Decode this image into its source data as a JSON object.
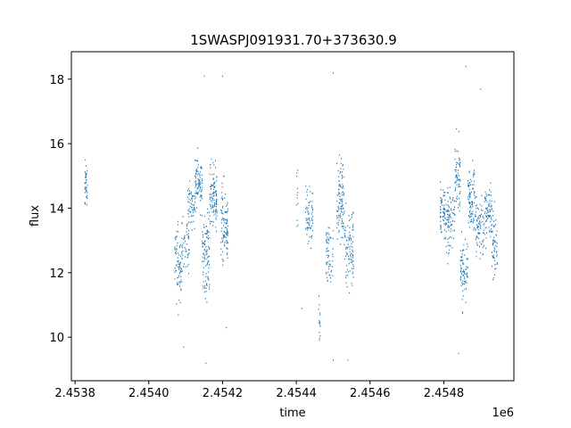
{
  "chart_data": {
    "type": "scatter",
    "title": "1SWASPJ091931.70+373630.9",
    "xlabel": "time",
    "ylabel": "flux",
    "x_offset_label": "1e6",
    "xlim": [
      2453790,
      2454990
    ],
    "ylim": [
      8.65,
      18.85
    ],
    "x_ticks": [
      2453800,
      2454000,
      2454200,
      2454400,
      2454600,
      2454800
    ],
    "x_tick_labels": [
      "2.4538",
      "2.4540",
      "2.4542",
      "2.4544",
      "2.4546",
      "2.4548"
    ],
    "y_ticks": [
      10,
      12,
      14,
      16,
      18
    ],
    "y_tick_labels": [
      "10",
      "12",
      "14",
      "16",
      "18"
    ],
    "grid": false,
    "legend": "none",
    "marker_color": "#1f77b4",
    "clusters": [
      {
        "x0": 2453825,
        "x1": 2453834,
        "y_center": 14.7,
        "y_spread": 0.35,
        "count": 40
      },
      {
        "x0": 2454070,
        "x1": 2454090,
        "y_center": 12.3,
        "y_spread": 0.55,
        "count": 80
      },
      {
        "x0": 2454090,
        "x1": 2454110,
        "y_center": 12.9,
        "y_spread": 0.4,
        "count": 50
      },
      {
        "x0": 2454105,
        "x1": 2454125,
        "y_center": 14.1,
        "y_spread": 0.35,
        "count": 60
      },
      {
        "x0": 2454125,
        "x1": 2454145,
        "y_center": 14.8,
        "y_spread": 0.4,
        "count": 90
      },
      {
        "x0": 2454145,
        "x1": 2454165,
        "y_center": 12.6,
        "y_spread": 0.7,
        "count": 110
      },
      {
        "x0": 2454165,
        "x1": 2454185,
        "y_center": 14.3,
        "y_spread": 0.5,
        "count": 110
      },
      {
        "x0": 2454195,
        "x1": 2454215,
        "y_center": 13.5,
        "y_spread": 0.6,
        "count": 100
      },
      {
        "x0": 2454400,
        "x1": 2454405,
        "y_center": 14.3,
        "y_spread": 0.6,
        "count": 12
      },
      {
        "x0": 2454425,
        "x1": 2454445,
        "y_center": 13.7,
        "y_spread": 0.4,
        "count": 70
      },
      {
        "x0": 2454460,
        "x1": 2454465,
        "y_center": 10.4,
        "y_spread": 0.4,
        "count": 15
      },
      {
        "x0": 2454480,
        "x1": 2454500,
        "y_center": 12.6,
        "y_spread": 0.45,
        "count": 60
      },
      {
        "x0": 2454510,
        "x1": 2454530,
        "y_center": 14.3,
        "y_spread": 0.6,
        "count": 110
      },
      {
        "x0": 2454530,
        "x1": 2454555,
        "y_center": 12.8,
        "y_spread": 0.7,
        "count": 100
      },
      {
        "x0": 2454790,
        "x1": 2454805,
        "y_center": 13.9,
        "y_spread": 0.4,
        "count": 60
      },
      {
        "x0": 2454805,
        "x1": 2454830,
        "y_center": 13.6,
        "y_spread": 0.5,
        "count": 90
      },
      {
        "x0": 2454830,
        "x1": 2454845,
        "y_center": 15.0,
        "y_spread": 0.5,
        "count": 70
      },
      {
        "x0": 2454845,
        "x1": 2454865,
        "y_center": 12.0,
        "y_spread": 0.5,
        "count": 80
      },
      {
        "x0": 2454865,
        "x1": 2454885,
        "y_center": 14.4,
        "y_spread": 0.45,
        "count": 90
      },
      {
        "x0": 2454885,
        "x1": 2454910,
        "y_center": 13.4,
        "y_spread": 0.5,
        "count": 80
      },
      {
        "x0": 2454910,
        "x1": 2454930,
        "y_center": 13.8,
        "y_spread": 0.4,
        "count": 80
      },
      {
        "x0": 2454930,
        "x1": 2454945,
        "y_center": 12.8,
        "y_spread": 0.5,
        "count": 60
      }
    ],
    "outliers": [
      {
        "x": 2454150,
        "y": 18.1
      },
      {
        "x": 2454200,
        "y": 18.1
      },
      {
        "x": 2454155,
        "y": 9.2
      },
      {
        "x": 2454500,
        "y": 18.2
      },
      {
        "x": 2454500,
        "y": 9.3
      },
      {
        "x": 2454540,
        "y": 9.3
      },
      {
        "x": 2454860,
        "y": 18.4
      },
      {
        "x": 2454900,
        "y": 17.7
      },
      {
        "x": 2454840,
        "y": 9.5
      },
      {
        "x": 2454080,
        "y": 10.7
      },
      {
        "x": 2454415,
        "y": 10.9
      },
      {
        "x": 2454210,
        "y": 10.3
      },
      {
        "x": 2454095,
        "y": 9.7
      }
    ]
  }
}
